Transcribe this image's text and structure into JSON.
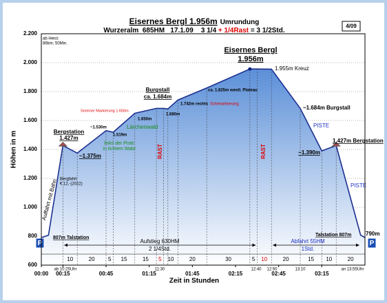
{
  "chart_data": {
    "type": "area",
    "title": "Eisernes Bergl 1.956m",
    "title_suffix": "Umrundung",
    "subtitle_parts": [
      {
        "text": "Wurzeralm  685HM   17.1.09    3 1/4 ",
        "color": "#000000"
      },
      {
        "text": "+ 1/4Rast",
        "color": "#dd0000"
      },
      {
        "text": " = 3 1/2Std.",
        "color": "#000000"
      }
    ],
    "badge": "4/09",
    "y_label": "Höhen in m",
    "x_label": "Zeit in Stunden",
    "x": [
      0,
      5,
      15,
      25,
      45,
      50,
      65,
      80,
      85,
      88,
      95,
      115,
      145,
      150,
      160,
      180,
      195,
      205,
      222,
      225
    ],
    "series": [
      {
        "color": "#1c2f8f",
        "fill": "#5b8fd8",
        "values": [
          790,
          807,
          1427,
          1375,
          1530,
          1519,
          1650,
          1684,
          1684,
          1680,
          1742,
          1825,
          1956,
          1956,
          1955,
          1684,
          1390,
          1427,
          807,
          790
        ]
      }
    ],
    "xlim": [
      0,
      225
    ],
    "xticks": [
      {
        "value": 0,
        "label": "00:00"
      },
      {
        "value": 15,
        "label": "00:15"
      },
      {
        "value": 45,
        "label": "00:45"
      },
      {
        "value": 75,
        "label": "01:15"
      },
      {
        "value": 105,
        "label": "01:45"
      },
      {
        "value": 135,
        "label": "02:15"
      },
      {
        "value": 165,
        "label": "02:45"
      },
      {
        "value": 195,
        "label": "03:15"
      }
    ],
    "ylim": [
      600,
      2200
    ],
    "yticks": [
      600,
      800,
      {
        "value": 1000,
        "label": "1.000"
      },
      {
        "value": 1200,
        "label": "1.200"
      },
      {
        "value": 1400,
        "label": "1.400"
      },
      {
        "value": 1600,
        "label": "1.600"
      },
      {
        "value": 1800,
        "label": "1.800"
      },
      {
        "value": 2000,
        "label": "2.000"
      },
      {
        "value": 2200,
        "label": "2.200"
      }
    ],
    "grid": true,
    "durations": {
      "values": [
        10,
        20,
        5,
        15,
        15,
        5,
        10,
        20,
        30,
        5,
        10,
        20,
        15,
        10,
        20
      ],
      "colors": [
        "#000000",
        "#000000",
        "#000000",
        "#000000",
        "#000000",
        "#dd0000",
        "#000000",
        "#000000",
        "#000000",
        "#000000",
        "#dd0000",
        "#000000",
        "#000000",
        "#000000",
        "#000000"
      ]
    },
    "annotations": [
      {
        "text": "ab Heist:"
      },
      {
        "text": "86km; 50Min."
      },
      {
        "text": "Eisernes Bergl"
      },
      {
        "text": "1.956m"
      },
      {
        "text": "1.955m Kreuz"
      },
      {
        "text": "Burgstall"
      },
      {
        "text": "ca. 1.684m"
      },
      {
        "text": "ca. 1.825m westl. Plateau"
      },
      {
        "text": "1.742m rechts"
      },
      {
        "text": "Schimarkierung",
        "color": "#dd0000"
      },
      {
        "text": "Sommer Markierung 1.650m",
        "color": "#dd0000"
      },
      {
        "text": "1.650m"
      },
      {
        "text": "1.680m"
      },
      {
        "text": "Lärchenwald",
        "color": "#1a8a1a"
      },
      {
        "text": "~1.530m"
      },
      {
        "text": "1.519m"
      },
      {
        "text": "links der Piste",
        "color": "#1a8a1a"
      },
      {
        "text": "in lichtem Wald",
        "color": "#1a8a1a"
      },
      {
        "text": "Bergstation"
      },
      {
        "text": "1.427m"
      },
      {
        "text": "~1.375m"
      },
      {
        "text": "Bergfahrt"
      },
      {
        "text": "€ 12,-(2022)"
      },
      {
        "text": "Auffahrt mit Bahn"
      },
      {
        "text": "RAST",
        "color": "#dd0000"
      },
      {
        "text": "RAST",
        "color": "#dd0000"
      },
      {
        "text": "~1.684m Burgstall"
      },
      {
        "text": "PISTE",
        "color": "#1a2fc0"
      },
      {
        "text": "~1.390m"
      },
      {
        "text": "1.427m Bergstation"
      },
      {
        "text": "PISTE",
        "color": "#1a2fc0"
      },
      {
        "text": "807m Talstation"
      },
      {
        "text": "Talstation 807m"
      },
      {
        "text": "790m"
      },
      {
        "text": "P",
        "color": "#ffffff"
      },
      {
        "text": "P",
        "color": "#ffffff"
      },
      {
        "text": "Aufstieg 630HM"
      },
      {
        "text": "2 1/4Std."
      },
      {
        "text": "Abfahrt 55HM",
        "color": "#1a2fc0"
      },
      {
        "text": "1Std.",
        "color": "#1a2fc0"
      },
      {
        "text": "ab 10:25Uhr"
      },
      {
        "text": "11:30"
      },
      {
        "text": "12:40"
      },
      {
        "text": "12:50"
      },
      {
        "text": "13:10"
      },
      {
        "text": "an 13:55Uhr"
      }
    ]
  }
}
